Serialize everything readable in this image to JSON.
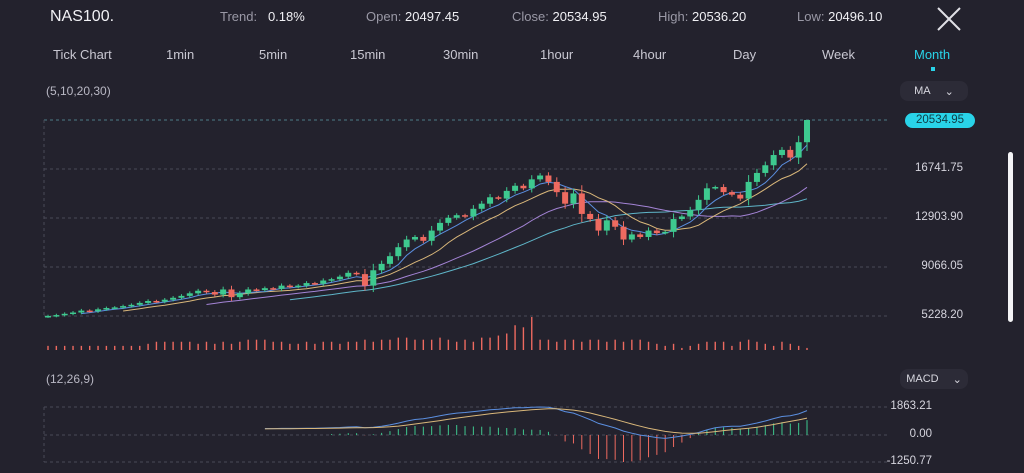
{
  "header": {
    "symbol": "NAS100.",
    "trend_label": "Trend:",
    "trend_value": "0.18%",
    "open_label": "Open:",
    "open_value": "20497.45",
    "close_label": "Close:",
    "close_value": "20534.95",
    "high_label": "High:",
    "high_value": "20536.20",
    "low_label": "Low:",
    "low_value": "20496.10",
    "close_icon": "close-x-icon"
  },
  "tabs": [
    {
      "label": "Tick Chart"
    },
    {
      "label": "1min"
    },
    {
      "label": "5min"
    },
    {
      "label": "15min"
    },
    {
      "label": "30min"
    },
    {
      "label": "1hour"
    },
    {
      "label": "4hour"
    },
    {
      "label": "Day"
    },
    {
      "label": "Week"
    },
    {
      "label": "Month",
      "active": true
    }
  ],
  "main_indicator": {
    "params": "(5,10,20,30)",
    "selector": "MA"
  },
  "sub_indicator": {
    "params": "(12,26,9)",
    "selector": "MACD"
  },
  "price_axis": {
    "current": "20534.95",
    "ticks": [
      "16741.75",
      "12903.90",
      "9066.05",
      "5228.20"
    ]
  },
  "macd_axis": {
    "ticks": [
      "1863.21",
      "0.00",
      "-1250.77"
    ]
  },
  "colors": {
    "up": "#3ec98f",
    "down": "#ee6a60",
    "accent": "#29d3e8",
    "ma5": "#5b8fe0",
    "ma10": "#d9b77a",
    "ma20": "#a484d6",
    "ma30": "#5fb6c9",
    "background": "#23222d"
  },
  "chart_data": {
    "type": "candlestick",
    "interval": "Month",
    "ylim": [
      5228.2,
      20534.95
    ],
    "macd_ylim": [
      -1250.77,
      1863.21
    ],
    "closes": [
      5230,
      5300,
      5400,
      5500,
      5650,
      5600,
      5750,
      5850,
      5900,
      6000,
      6100,
      6250,
      6400,
      6350,
      6500,
      6650,
      6800,
      7000,
      7200,
      7100,
      6900,
      7300,
      6700,
      7000,
      7300,
      7250,
      7400,
      7350,
      7600,
      7500,
      7600,
      7800,
      7750,
      8000,
      8100,
      8300,
      8600,
      8500,
      7600,
      8800,
      9300,
      9900,
      10600,
      11200,
      11400,
      11100,
      11900,
      12500,
      12900,
      13100,
      13000,
      13600,
      14000,
      14500,
      14400,
      15000,
      15400,
      15200,
      15900,
      16200,
      15700,
      14900,
      14000,
      14800,
      13200,
      12800,
      11900,
      12700,
      12200,
      11200,
      11600,
      11400,
      11900,
      11700,
      11800,
      12800,
      13000,
      13500,
      14300,
      15200,
      15300,
      14900,
      14700,
      14400,
      15700,
      16400,
      17000,
      17800,
      18200,
      17600,
      18800,
      20534.95
    ],
    "volumes": [
      2,
      2,
      2,
      2,
      2,
      2,
      2,
      2,
      2,
      2,
      2,
      2,
      3,
      4,
      4,
      4,
      4,
      4,
      3,
      4,
      3,
      4,
      3,
      4,
      5,
      5,
      5,
      4,
      4,
      3,
      3,
      4,
      3,
      4,
      4,
      3,
      4,
      4,
      5,
      4,
      5,
      5,
      6,
      6,
      5,
      5,
      5,
      6,
      5,
      4,
      5,
      4,
      6,
      6,
      7,
      8,
      12,
      11,
      16,
      5,
      5,
      4,
      5,
      5,
      4,
      5,
      5,
      4,
      5,
      4,
      5,
      5,
      4,
      3,
      2,
      3,
      1,
      2,
      3,
      4,
      4,
      4,
      2,
      4,
      5,
      4,
      3,
      2,
      4,
      3,
      2,
      1
    ]
  }
}
